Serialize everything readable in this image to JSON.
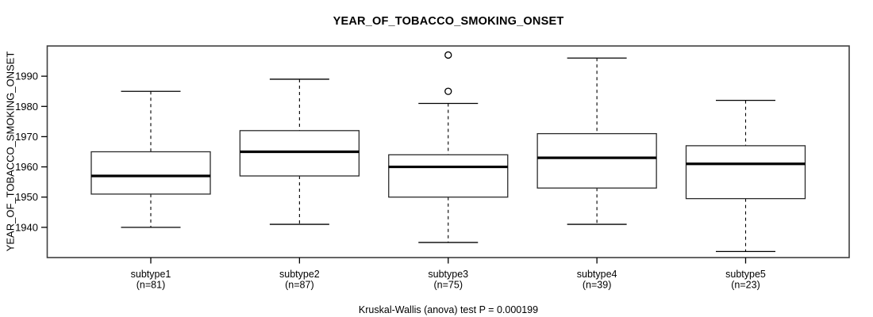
{
  "page": {
    "background": "#ffffff"
  },
  "chart_data": {
    "type": "boxplot",
    "title": "YEAR_OF_TOBACCO_SMOKING_ONSET",
    "ylabel": "YEAR_OF_TOBACCO_SMOKING_ONSET",
    "xlabel": "",
    "annotation": "Kruskal-Wallis (anova) test P = 0.000199",
    "ylim": [
      1930,
      2000
    ],
    "yticks": [
      1940,
      1950,
      1960,
      1970,
      1980,
      1990
    ],
    "grid": false,
    "legend": null,
    "groups": [
      {
        "label": "subtype1",
        "n_label": "(n=81)",
        "n": 81,
        "whisker_low": 1940,
        "q1": 1951,
        "median": 1957,
        "q3": 1965,
        "whisker_high": 1985,
        "outliers": []
      },
      {
        "label": "subtype2",
        "n_label": "(n=87)",
        "n": 87,
        "whisker_low": 1941,
        "q1": 1957,
        "median": 1965,
        "q3": 1972,
        "whisker_high": 1989,
        "outliers": []
      },
      {
        "label": "subtype3",
        "n_label": "(n=75)",
        "n": 75,
        "whisker_low": 1935,
        "q1": 1950,
        "median": 1960,
        "q3": 1964,
        "whisker_high": 1981,
        "outliers": [
          1985,
          1997
        ]
      },
      {
        "label": "subtype4",
        "n_label": "(n=39)",
        "n": 39,
        "whisker_low": 1941,
        "q1": 1953,
        "median": 1963,
        "q3": 1971,
        "whisker_high": 1996,
        "outliers": []
      },
      {
        "label": "subtype5",
        "n_label": "(n=23)",
        "n": 23,
        "whisker_low": 1932,
        "q1": 1949.5,
        "median": 1961,
        "q3": 1967,
        "whisker_high": 1982,
        "outliers": []
      }
    ],
    "colors": {
      "line": "#000000",
      "box_border": "#2b2b2b",
      "frame": "#3f3f3f",
      "text": "#000000",
      "background": "#ffffff"
    }
  }
}
